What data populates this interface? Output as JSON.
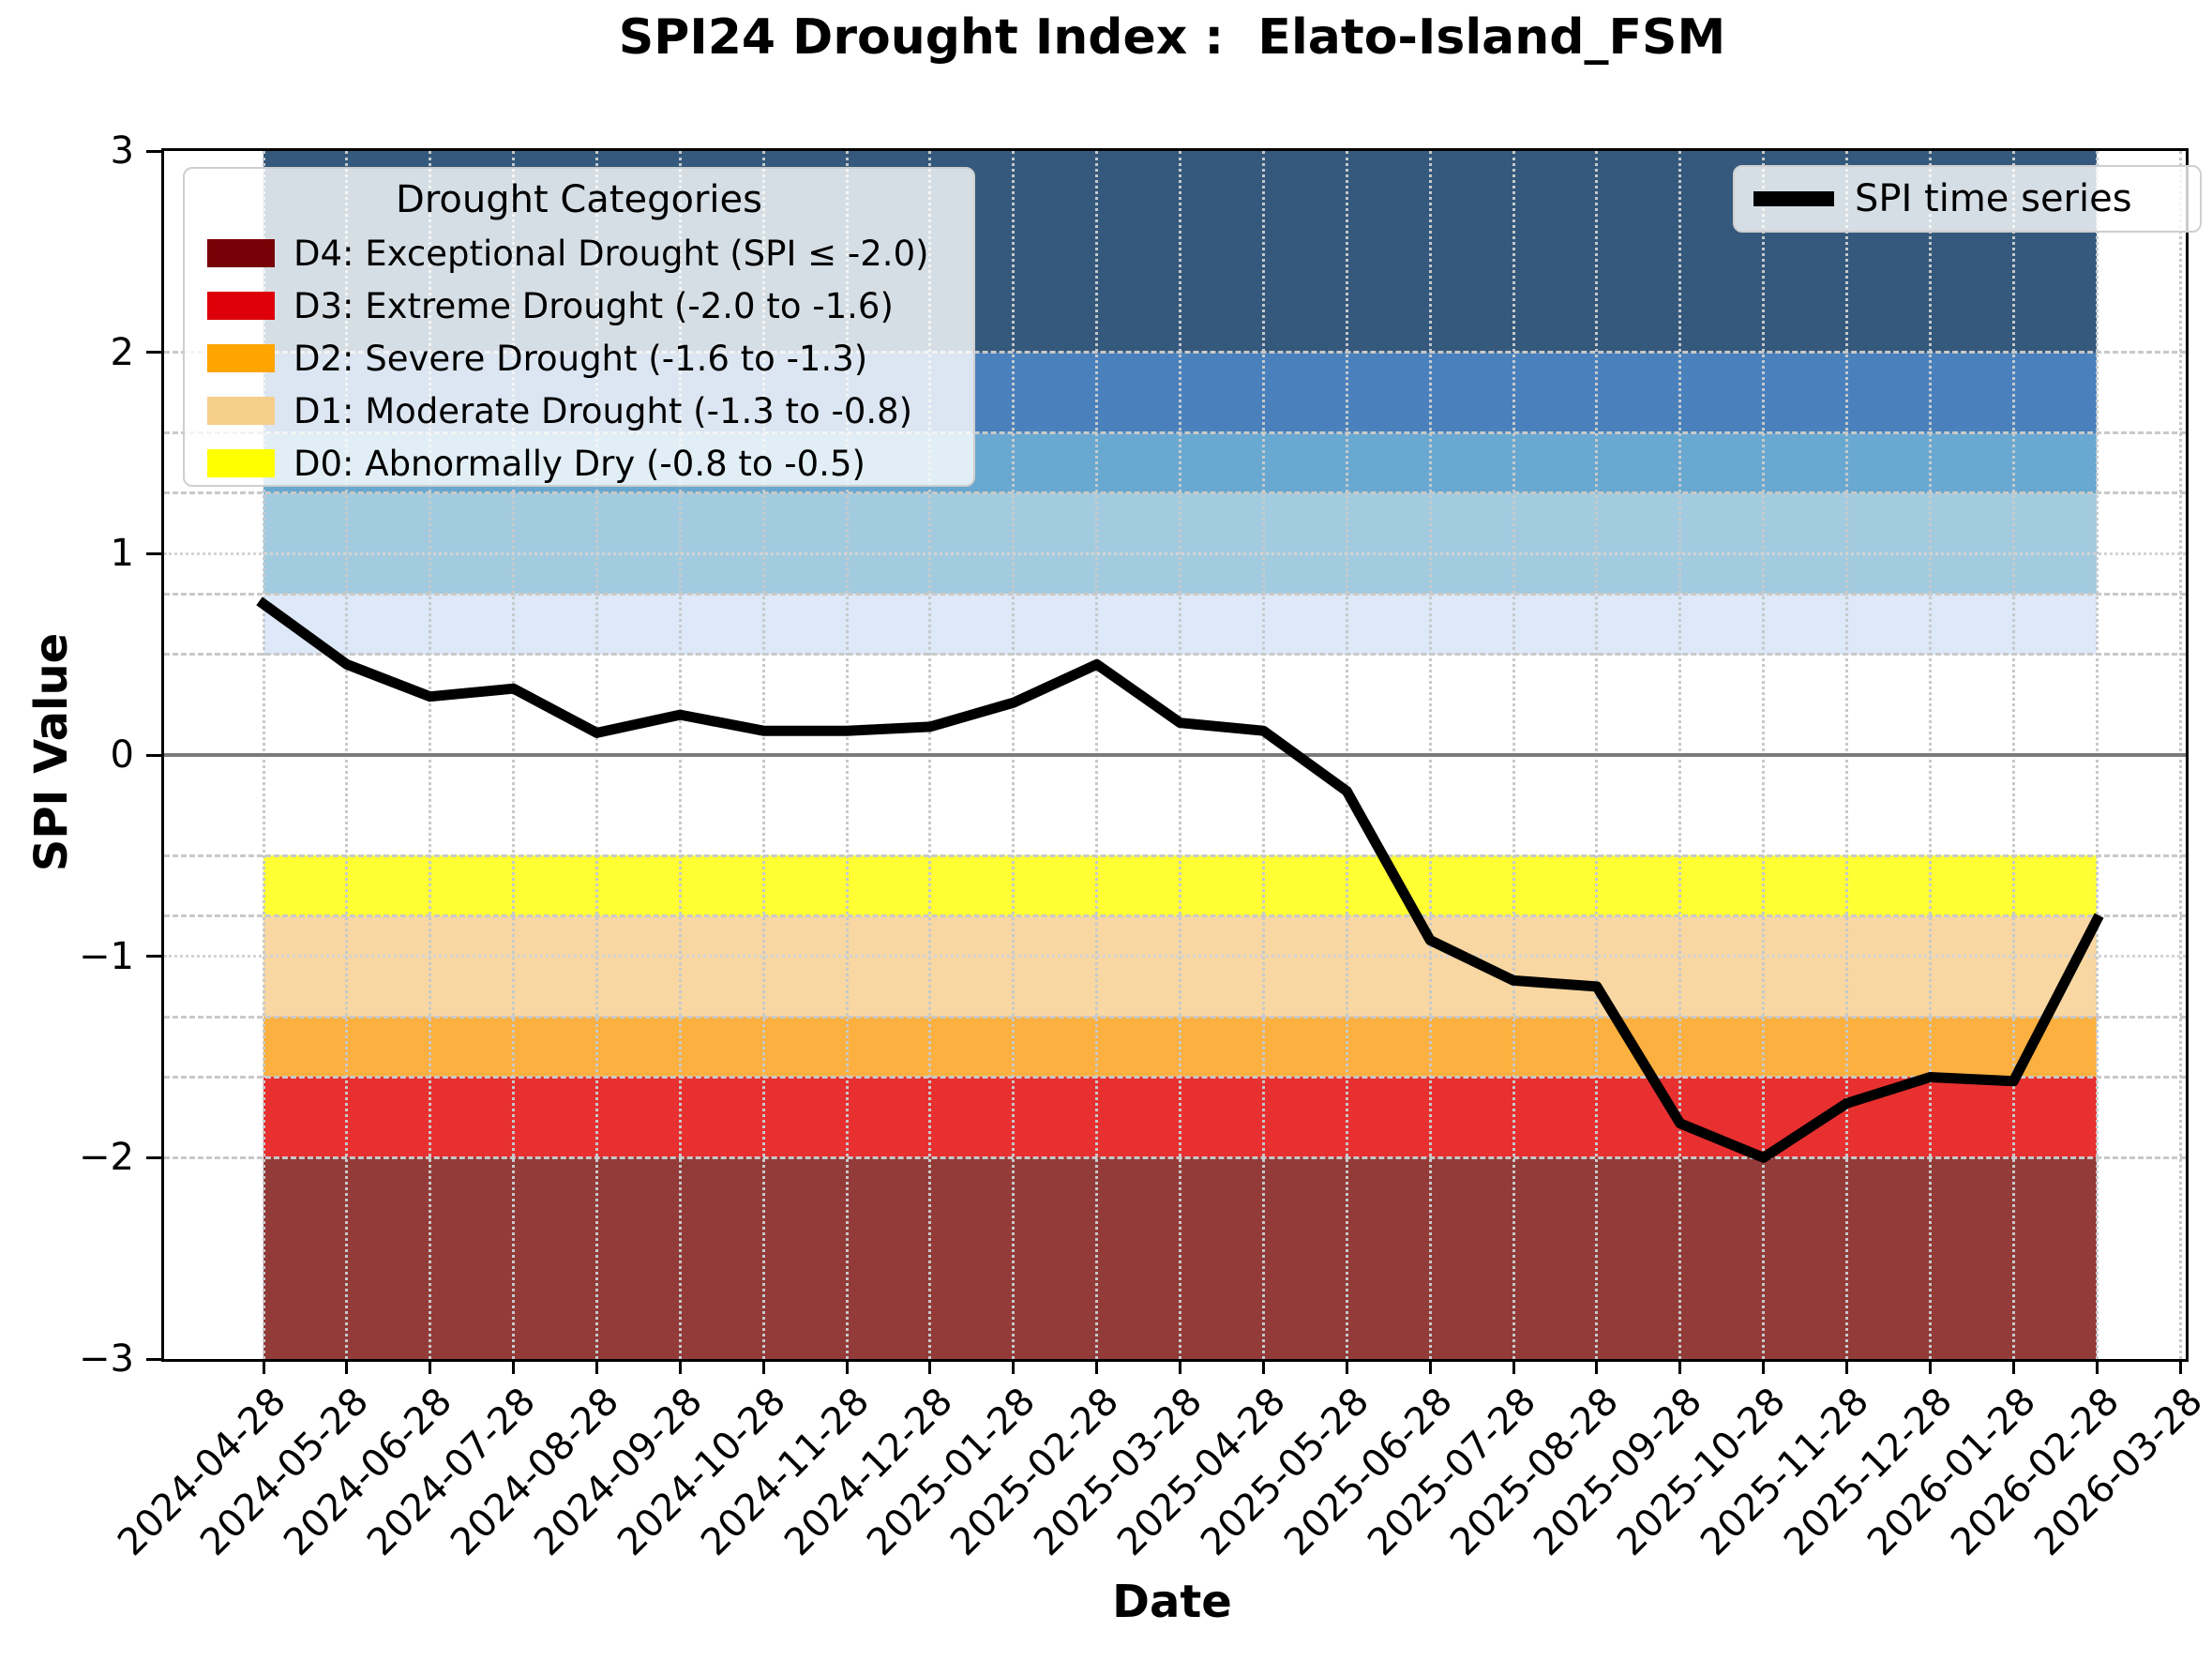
{
  "title": "SPI24 Drought Index :  Elato-Island_FSM",
  "xlabel": "Date",
  "ylabel": "SPI Value",
  "legends": {
    "categories": {
      "title": "Drought Categories",
      "items": [
        {
          "label": "D4: Exceptional Drought (SPI ≤ -2.0)",
          "color": "#780108"
        },
        {
          "label": "D3: Extreme Drought (-2.0 to -1.6)",
          "color": "#DE0008"
        },
        {
          "label": "D2: Severe Drought (-1.6 to -1.3)",
          "color": "#FFA500"
        },
        {
          "label": "D1: Moderate Drought (-1.3 to -0.8)",
          "color": "#F6CE8C"
        },
        {
          "label": "D0: Abnormally Dry (-0.8 to -0.5)",
          "color": "#FFFF00"
        }
      ]
    },
    "series": {
      "label": "SPI time series",
      "color": "#000000"
    }
  },
  "chart_data": {
    "type": "line",
    "title": "SPI24 Drought Index :  Elato-Island_FSM",
    "xlabel": "Date",
    "ylabel": "SPI Value",
    "ylim": [
      -3,
      3
    ],
    "yticks": [
      3,
      2,
      1,
      0,
      -1,
      -2,
      -3
    ],
    "ytick_labels": [
      "3",
      "2",
      "1",
      "0",
      "−1",
      "−2",
      "−3"
    ],
    "x_tick_labels": [
      "2024-04-28",
      "2024-05-28",
      "2024-06-28",
      "2024-07-28",
      "2024-08-28",
      "2024-09-28",
      "2024-10-28",
      "2024-11-28",
      "2024-12-28",
      "2025-01-28",
      "2025-02-28",
      "2025-03-28",
      "2025-04-28",
      "2025-05-28",
      "2025-06-28",
      "2025-07-28",
      "2025-08-28",
      "2025-09-28",
      "2025-10-28",
      "2025-11-28",
      "2025-12-28",
      "2026-01-28",
      "2026-02-28",
      "2026-03-28"
    ],
    "series": [
      {
        "name": "SPI time series",
        "color": "#000000",
        "dates": [
          "2024-04-28",
          "2024-05-28",
          "2024-06-28",
          "2024-07-28",
          "2024-08-28",
          "2024-09-28",
          "2024-10-28",
          "2024-11-28",
          "2024-12-28",
          "2025-01-28",
          "2025-02-28",
          "2025-03-28",
          "2025-04-28",
          "2025-05-28",
          "2025-06-28",
          "2025-07-28",
          "2025-08-28",
          "2025-09-28",
          "2025-10-28",
          "2025-11-28",
          "2025-12-28",
          "2026-01-28",
          "2026-02-28"
        ],
        "values": [
          0.75,
          0.45,
          0.29,
          0.33,
          0.11,
          0.2,
          0.12,
          0.12,
          0.14,
          0.26,
          0.45,
          0.16,
          0.12,
          -0.18,
          -0.92,
          -1.12,
          -1.15,
          -1.83,
          -2.0,
          -1.73,
          -1.6,
          -1.62,
          -0.82
        ]
      }
    ],
    "bands": [
      {
        "from": 2.0,
        "to": 3.0,
        "color": "#35597C"
      },
      {
        "from": 1.6,
        "to": 2.0,
        "color": "#4A81BC"
      },
      {
        "from": 1.3,
        "to": 1.6,
        "color": "#69A8D0"
      },
      {
        "from": 0.8,
        "to": 1.3,
        "color": "#A3CBE0"
      },
      {
        "from": 0.5,
        "to": 0.8,
        "color": "#DDE8F8"
      },
      {
        "id": "D0",
        "from": -0.8,
        "to": -0.5,
        "color": "#FFFF33"
      },
      {
        "id": "D1",
        "from": -1.3,
        "to": -0.8,
        "color": "#F8D7A2"
      },
      {
        "id": "D2",
        "from": -1.6,
        "to": -1.3,
        "color": "#FBB040"
      },
      {
        "id": "D3",
        "from": -2.0,
        "to": -1.6,
        "color": "#E83030"
      },
      {
        "id": "D4",
        "from": -3.0,
        "to": -2.0,
        "color": "#933B38"
      }
    ],
    "grid": {
      "dashed_y": [
        2.0,
        1.6,
        1.3,
        0.8,
        0.5,
        -0.5,
        -0.8,
        -1.3,
        -1.6,
        -2.0
      ],
      "dotted_y": [
        1.0,
        -1.0
      ],
      "vertical_dotted_at_ticks": true,
      "zero_line": true,
      "legend_position": {
        "categories": "upper left",
        "series": "upper right"
      }
    }
  }
}
